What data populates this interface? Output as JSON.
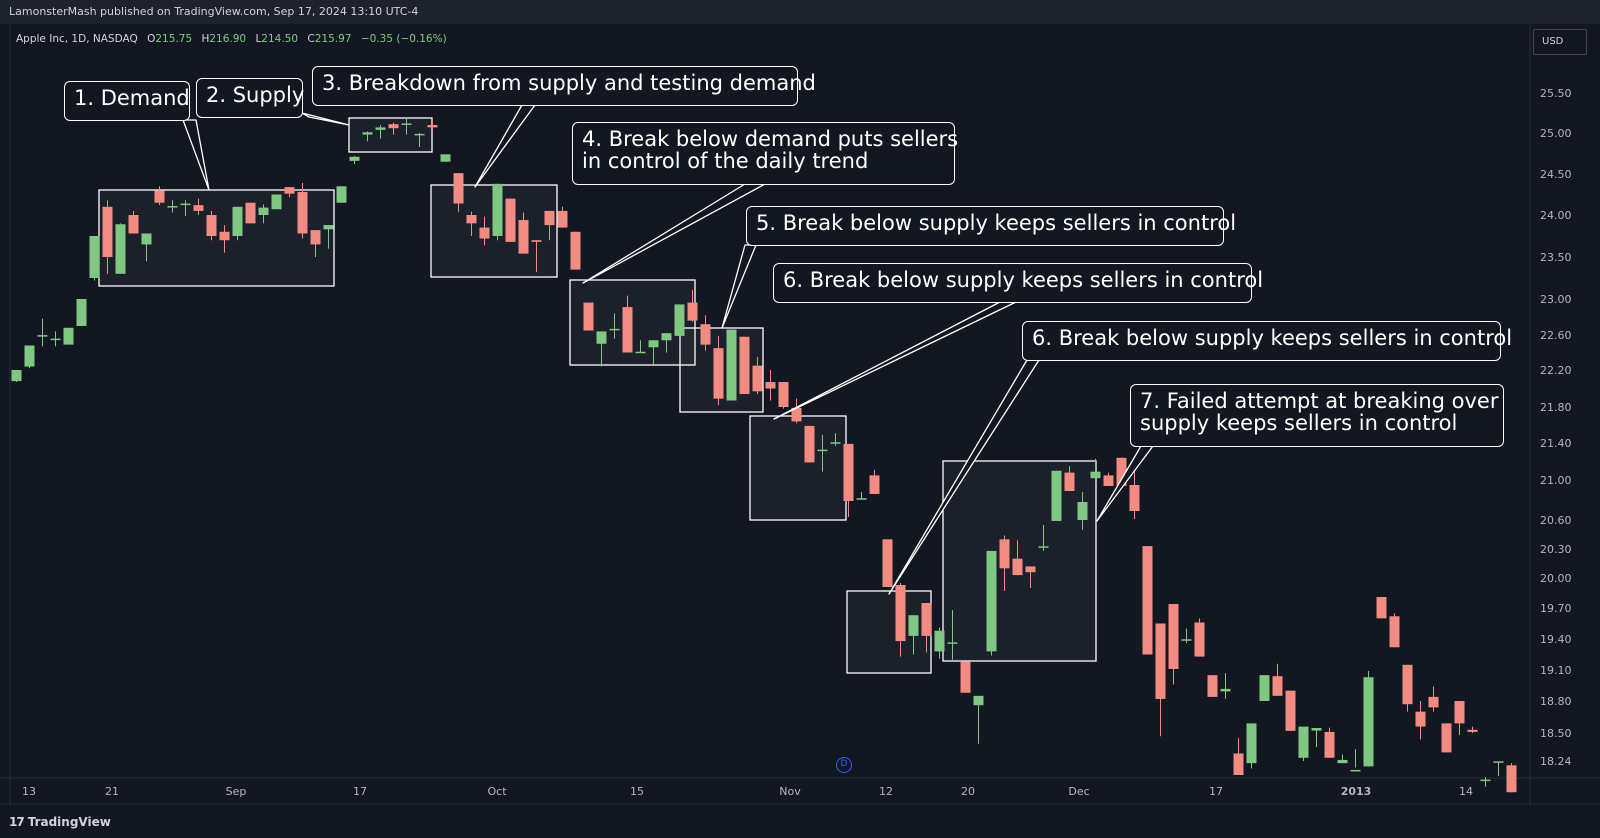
{
  "header": {
    "published": "LamonsterMash published on TradingView.com, Sep 17, 2024 13:10 UTC-4"
  },
  "legend": {
    "symbol": "Apple Inc, 1D, NASDAQ",
    "open_label": "O",
    "open": "215.75",
    "high_label": "H",
    "high": "216.90",
    "low_label": "L",
    "low": "214.50",
    "close_label": "C",
    "close": "215.97",
    "change": "−0.35 (−0.16%)"
  },
  "currency": "USD",
  "footer": {
    "brand": "TradingView",
    "brand_glyph": "17"
  },
  "event_marker": "D",
  "colors": {
    "up": "#81c784",
    "down": "#f28b82",
    "background": "#131722",
    "annotation": "#ffffff",
    "event": "#2962ff"
  },
  "annotations": [
    {
      "id": "a1",
      "lines": [
        "1. Demand"
      ]
    },
    {
      "id": "a2",
      "lines": [
        "2. Supply"
      ]
    },
    {
      "id": "a3",
      "lines": [
        "3. Breakdown from supply and testing demand"
      ]
    },
    {
      "id": "a4",
      "lines": [
        "4. Break below demand puts sellers",
        "in control of the daily trend"
      ]
    },
    {
      "id": "a5",
      "lines": [
        "5. Break below supply keeps sellers in control"
      ]
    },
    {
      "id": "a6",
      "lines": [
        "6. Break below supply keeps sellers in control"
      ]
    },
    {
      "id": "a6b",
      "lines": [
        "6. Break below supply keeps sellers in control"
      ]
    },
    {
      "id": "a7",
      "lines": [
        "7. Failed attempt at breaking over",
        "supply keeps sellers in control"
      ]
    }
  ],
  "chart_data": {
    "type": "candlestick",
    "y_axis_labels": [
      "25.50",
      "25.00",
      "24.50",
      "24.00",
      "23.50",
      "23.00",
      "22.60",
      "22.20",
      "21.80",
      "21.40",
      "21.00",
      "20.60",
      "20.30",
      "20.00",
      "19.70",
      "19.40",
      "19.10",
      "18.80",
      "18.50",
      "18.24"
    ],
    "x_axis_labels": [
      "13",
      "21",
      "Sep",
      "17",
      "Oct",
      "15",
      "Nov",
      "12",
      "20",
      "Dec",
      "17",
      "2013",
      "14"
    ],
    "candles": [
      [
        22.08,
        22.2,
        22.07,
        22.2
      ],
      [
        22.24,
        22.48,
        22.22,
        22.48
      ],
      [
        22.59,
        22.78,
        22.47,
        22.59
      ],
      [
        22.55,
        22.64,
        22.47,
        22.55
      ],
      [
        22.49,
        22.68,
        22.49,
        22.68
      ],
      [
        22.7,
        23.0,
        22.7,
        23.0
      ],
      [
        23.25,
        23.75,
        23.22,
        23.75
      ],
      [
        24.1,
        24.18,
        23.3,
        23.5
      ],
      [
        23.3,
        23.9,
        23.3,
        23.89
      ],
      [
        24.0,
        24.05,
        23.78,
        23.78
      ],
      [
        23.65,
        23.78,
        23.45,
        23.78
      ],
      [
        24.3,
        24.35,
        24.12,
        24.15
      ],
      [
        24.1,
        24.18,
        24.03,
        24.1
      ],
      [
        24.13,
        24.18,
        23.99,
        24.13
      ],
      [
        24.12,
        24.2,
        24.0,
        24.05
      ],
      [
        24.0,
        24.05,
        23.7,
        23.75
      ],
      [
        23.8,
        23.88,
        23.55,
        23.7
      ],
      [
        23.75,
        24.1,
        23.7,
        24.1
      ],
      [
        24.15,
        24.15,
        23.9,
        23.9
      ],
      [
        24.0,
        24.13,
        23.9,
        24.09
      ],
      [
        24.07,
        24.25,
        24.07,
        24.25
      ],
      [
        24.34,
        24.34,
        24.22,
        24.26
      ],
      [
        24.28,
        24.39,
        23.72,
        23.78
      ],
      [
        23.82,
        23.82,
        23.5,
        23.65
      ],
      [
        23.83,
        23.88,
        23.6,
        23.88
      ],
      [
        24.15,
        24.35,
        24.15,
        24.35
      ],
      [
        24.66,
        24.72,
        24.62,
        24.71
      ],
      [
        24.99,
        25.02,
        24.9,
        25.0
      ],
      [
        25.04,
        25.1,
        24.93,
        25.07
      ],
      [
        25.11,
        25.13,
        24.98,
        25.06
      ],
      [
        25.11,
        25.19,
        24.98,
        25.11
      ],
      [
        24.98,
        25.0,
        24.83,
        24.98
      ],
      [
        25.1,
        25.19,
        25.03,
        25.07
      ],
      [
        24.65,
        24.74,
        24.65,
        24.74
      ],
      [
        24.51,
        24.51,
        24.04,
        24.14
      ],
      [
        24.0,
        24.04,
        23.75,
        23.9
      ],
      [
        23.85,
        23.98,
        23.64,
        23.72
      ],
      [
        23.75,
        24.38,
        23.7,
        24.38
      ],
      [
        24.2,
        24.2,
        23.68,
        23.68
      ],
      [
        23.94,
        24.03,
        23.54,
        23.54
      ],
      [
        23.7,
        23.7,
        23.32,
        23.68
      ],
      [
        24.05,
        24.05,
        23.7,
        23.88
      ],
      [
        24.05,
        24.1,
        23.85,
        23.85
      ],
      [
        23.8,
        23.8,
        23.35,
        23.35
      ],
      [
        22.96,
        22.96,
        22.65,
        22.65
      ],
      [
        22.5,
        22.64,
        22.24,
        22.64
      ],
      [
        22.66,
        22.84,
        22.56,
        22.66
      ],
      [
        22.91,
        23.04,
        22.4,
        22.4
      ],
      [
        22.4,
        22.54,
        22.4,
        22.4
      ],
      [
        22.46,
        22.54,
        22.26,
        22.54
      ],
      [
        22.54,
        22.62,
        22.4,
        22.62
      ],
      [
        22.59,
        22.94,
        22.51,
        22.94
      ],
      [
        22.96,
        23.11,
        22.75,
        22.76
      ],
      [
        22.72,
        22.82,
        22.42,
        22.49
      ],
      [
        22.45,
        22.59,
        21.82,
        21.89
      ],
      [
        21.87,
        22.66,
        21.87,
        22.66
      ],
      [
        22.58,
        22.58,
        21.94,
        21.94
      ],
      [
        22.25,
        22.35,
        21.94,
        21.97
      ],
      [
        22.07,
        22.2,
        21.87,
        22.0
      ],
      [
        22.07,
        22.07,
        21.78,
        21.8
      ],
      [
        21.79,
        21.89,
        21.62,
        21.64
      ],
      [
        21.59,
        21.59,
        21.19,
        21.19
      ],
      [
        21.32,
        21.49,
        21.09,
        21.32
      ],
      [
        21.4,
        21.51,
        21.37,
        21.4
      ],
      [
        21.39,
        21.39,
        20.63,
        20.79
      ],
      [
        20.81,
        20.88,
        20.81,
        20.81
      ],
      [
        21.05,
        21.11,
        20.86,
        20.86
      ],
      [
        20.4,
        20.4,
        19.91,
        19.91
      ],
      [
        19.93,
        19.95,
        19.23,
        19.38
      ],
      [
        19.43,
        19.63,
        19.25,
        19.63
      ],
      [
        19.75,
        19.75,
        19.27,
        19.43
      ],
      [
        19.28,
        19.51,
        19.21,
        19.48
      ],
      [
        19.36,
        19.68,
        19.2,
        19.36
      ],
      [
        19.18,
        19.18,
        18.88,
        18.88
      ],
      [
        18.76,
        18.85,
        18.4,
        18.85
      ],
      [
        19.28,
        20.28,
        19.24,
        20.28
      ],
      [
        20.4,
        20.44,
        19.87,
        20.1
      ],
      [
        20.2,
        20.39,
        20.03,
        20.03
      ],
      [
        20.12,
        20.12,
        19.9,
        20.06
      ],
      [
        20.32,
        20.55,
        20.28,
        20.32
      ],
      [
        20.59,
        21.1,
        20.59,
        21.1
      ],
      [
        21.08,
        21.15,
        20.89,
        20.89
      ],
      [
        20.6,
        20.88,
        20.5,
        20.78
      ],
      [
        21.02,
        21.23,
        21.02,
        21.09
      ],
      [
        21.05,
        21.08,
        20.94,
        20.94
      ],
      [
        21.24,
        21.24,
        20.94,
        20.94
      ],
      [
        20.95,
        21.15,
        20.61,
        20.69
      ],
      [
        20.33,
        20.33,
        19.25,
        19.25
      ],
      [
        19.55,
        19.55,
        18.47,
        18.82
      ],
      [
        19.74,
        19.74,
        18.96,
        19.11
      ],
      [
        19.39,
        19.5,
        19.36,
        19.39
      ],
      [
        19.56,
        19.6,
        19.23,
        19.23
      ],
      [
        19.05,
        19.05,
        18.84,
        18.84
      ],
      [
        18.9,
        19.07,
        18.82,
        18.91
      ],
      [
        18.31,
        18.45,
        18.11,
        18.11
      ],
      [
        18.22,
        18.59,
        18.17,
        18.59
      ],
      [
        18.8,
        19.05,
        18.8,
        19.05
      ],
      [
        19.04,
        19.16,
        18.85,
        18.85
      ],
      [
        18.9,
        18.9,
        18.52,
        18.52
      ],
      [
        18.27,
        18.55,
        18.24,
        18.56
      ],
      [
        18.53,
        18.53,
        18.37,
        18.54
      ],
      [
        18.51,
        18.55,
        18.27,
        18.27
      ],
      [
        18.22,
        18.3,
        18.22,
        18.25
      ],
      [
        18.15,
        18.35,
        18.18,
        18.15
      ],
      [
        18.19,
        19.09,
        18.19,
        19.03
      ],
      [
        19.81,
        19.81,
        19.6,
        19.6
      ],
      [
        19.62,
        19.65,
        19.32,
        19.32
      ],
      [
        19.15,
        19.15,
        18.7,
        18.77
      ],
      [
        18.7,
        18.8,
        18.44,
        18.56
      ],
      [
        18.84,
        18.94,
        18.7,
        18.74
      ],
      [
        18.59,
        18.59,
        18.32,
        18.32
      ],
      [
        18.8,
        18.8,
        18.48,
        18.59
      ],
      [
        18.53,
        18.56,
        18.5,
        18.51
      ],
      [
        18.06,
        18.09,
        18.0,
        18.06
      ],
      [
        18.23,
        18.23,
        18.1,
        18.23
      ],
      [
        18.2,
        18.22,
        17.95,
        17.95
      ]
    ]
  }
}
